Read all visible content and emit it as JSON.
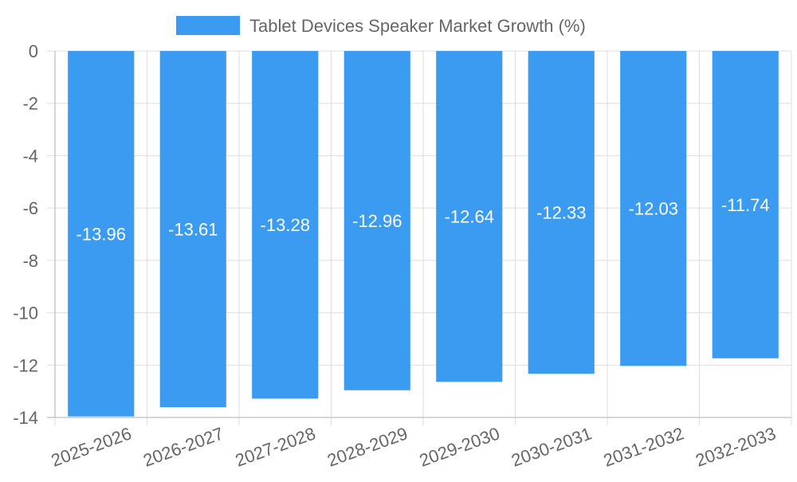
{
  "chart_data": {
    "type": "bar",
    "categories": [
      "2025-2026",
      "2026-2027",
      "2027-2028",
      "2028-2029",
      "2029-2030",
      "2030-2031",
      "2031-2032",
      "2032-2033"
    ],
    "series": [
      {
        "name": "Tablet Devices Speaker Market Growth (%)",
        "values": [
          -13.96,
          -13.61,
          -13.28,
          -12.96,
          -12.64,
          -12.33,
          -12.03,
          -11.74
        ],
        "color": "#3a9bf0"
      }
    ],
    "data_labels": [
      "-13.96",
      "-13.61",
      "-13.28",
      "-12.96",
      "-12.64",
      "-12.33",
      "-12.03",
      "-11.74"
    ],
    "y_ticks": [
      0,
      -2,
      -4,
      -6,
      -8,
      -10,
      -12,
      -14
    ],
    "y_tick_labels": [
      "0",
      "-2",
      "-4",
      "-6",
      "-8",
      "-10",
      "-12",
      "-14"
    ],
    "ylim": [
      -14,
      0
    ],
    "title": "",
    "xlabel": "",
    "ylabel": "",
    "grid": true,
    "legend_position": "top-center",
    "colors": {
      "bar": "#3a9bf0",
      "grid": "#dddddd",
      "axis": "#c8c8c8",
      "tick_text": "#666666",
      "data_label": "#ffffff"
    }
  }
}
